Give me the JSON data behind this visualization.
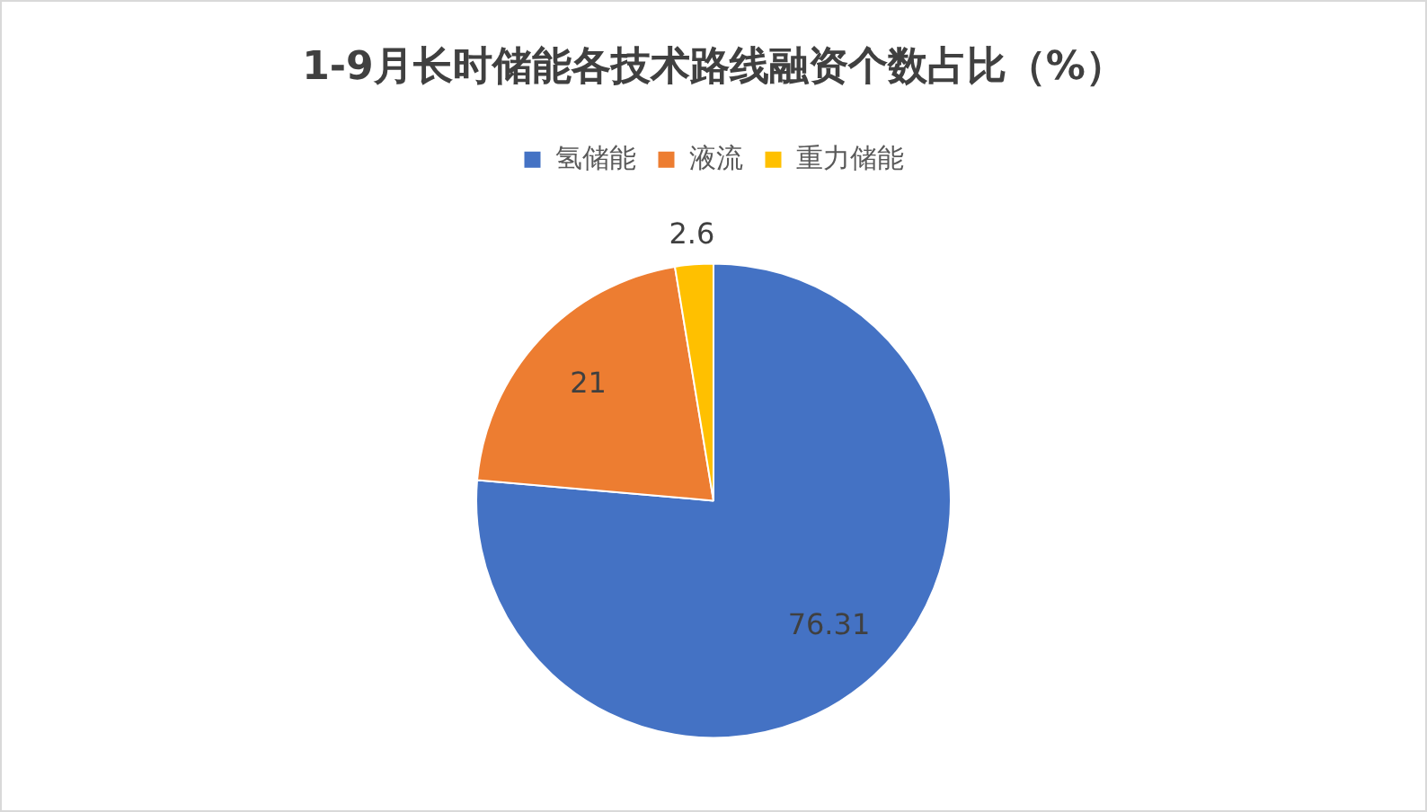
{
  "chart_data": {
    "type": "pie",
    "title": "1-9月长时储能各技术路线融资个数占比（%）",
    "categories": [
      "氢储能",
      "液流",
      "重力储能"
    ],
    "values": [
      76.31,
      21,
      2.6
    ],
    "colors": [
      "#4472c4",
      "#ed7d31",
      "#ffc000"
    ],
    "legend": "top",
    "data_labels": true
  }
}
